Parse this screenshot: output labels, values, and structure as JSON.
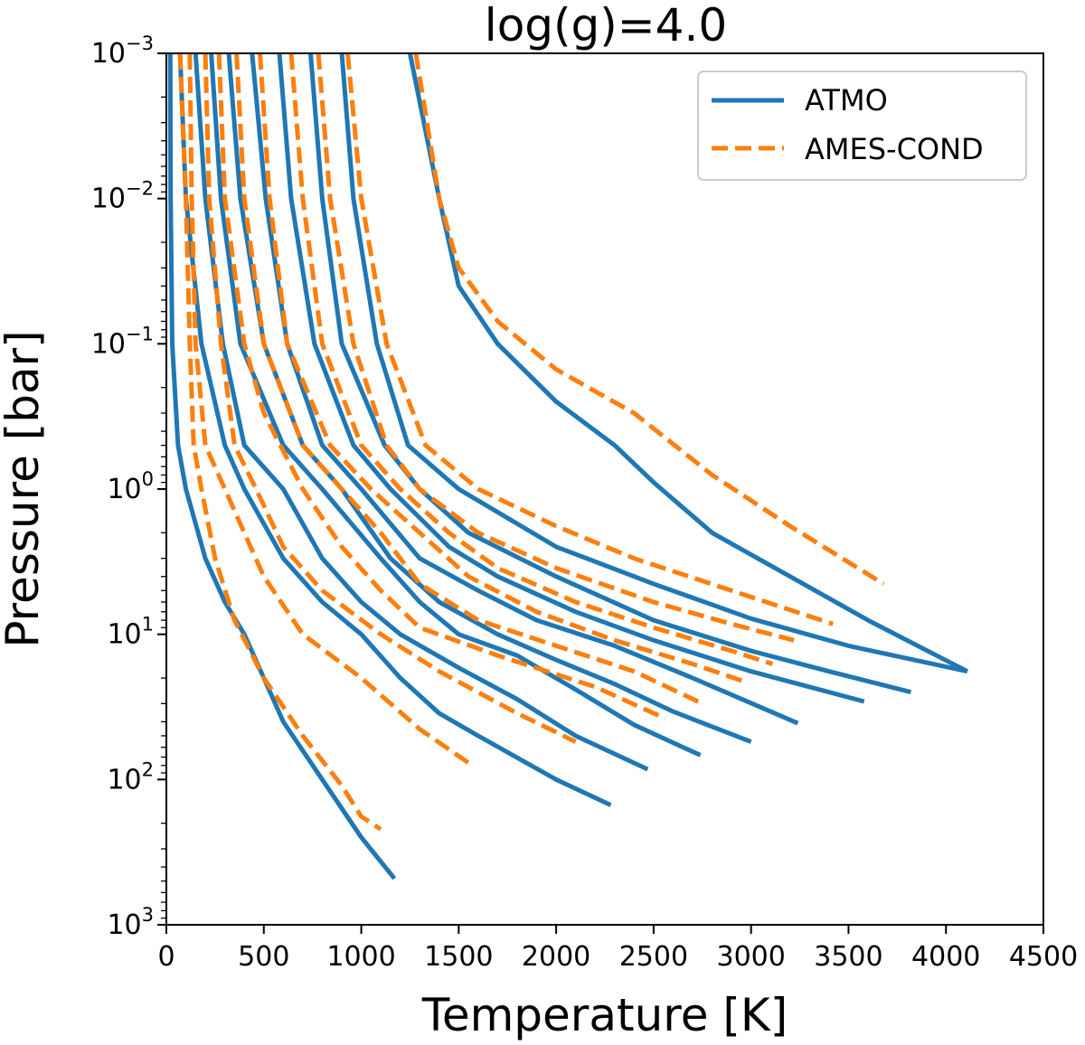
{
  "chart_data": {
    "type": "line",
    "title": "log(g)=4.0",
    "xlabel": "Temperature [K]",
    "ylabel": "Pressure [bar]",
    "xlim": [
      0,
      4500
    ],
    "ylim": [
      0.001,
      1000
    ],
    "y_scale": "log",
    "y_inverted": true,
    "x_ticks": [
      0,
      500,
      1000,
      1500,
      2000,
      2500,
      3000,
      3500,
      4000,
      4500
    ],
    "x_tick_labels": [
      "0",
      "500",
      "1000",
      "1500",
      "2000",
      "2500",
      "3000",
      "3500",
      "4000",
      "4500"
    ],
    "y_ticks": [
      0.001,
      0.01,
      0.1,
      1,
      10,
      100,
      1000
    ],
    "y_tick_labels": [
      {
        "base": "10",
        "exp": "−3"
      },
      {
        "base": "10",
        "exp": "−2"
      },
      {
        "base": "10",
        "exp": "−1"
      },
      {
        "base": "10",
        "exp": "0"
      },
      {
        "base": "10",
        "exp": "1"
      },
      {
        "base": "10",
        "exp": "2"
      },
      {
        "base": "10",
        "exp": "3"
      }
    ],
    "legend": {
      "position": "top-right",
      "entries": [
        {
          "label": "ATMO",
          "color": "#1f77b4",
          "style": "solid"
        },
        {
          "label": "AMES-COND",
          "color": "#ff7f0e",
          "style": "dashed"
        }
      ]
    },
    "series": [
      {
        "group": "ATMO",
        "color": "#1f77b4",
        "style": "solid",
        "points": [
          [
            20,
            0.001
          ],
          [
            22,
            0.01
          ],
          [
            30,
            0.1
          ],
          [
            60,
            0.5
          ],
          [
            100,
            1
          ],
          [
            200,
            3
          ],
          [
            300,
            6
          ],
          [
            400,
            10
          ],
          [
            500,
            20
          ],
          [
            600,
            40
          ],
          [
            800,
            100
          ],
          [
            1000,
            250
          ],
          [
            1170,
            480
          ]
        ]
      },
      {
        "group": "ATMO",
        "color": "#1f77b4",
        "style": "solid",
        "points": [
          [
            70,
            0.001
          ],
          [
            100,
            0.01
          ],
          [
            180,
            0.1
          ],
          [
            300,
            0.5
          ],
          [
            400,
            1
          ],
          [
            600,
            3
          ],
          [
            800,
            6
          ],
          [
            1000,
            10
          ],
          [
            1200,
            20
          ],
          [
            1400,
            35
          ],
          [
            1600,
            50
          ],
          [
            2000,
            100
          ],
          [
            2280,
            150
          ]
        ]
      },
      {
        "group": "ATMO",
        "color": "#1f77b4",
        "style": "solid",
        "points": [
          [
            150,
            0.001
          ],
          [
            200,
            0.01
          ],
          [
            290,
            0.1
          ],
          [
            400,
            0.5
          ],
          [
            600,
            1
          ],
          [
            800,
            3
          ],
          [
            1000,
            6
          ],
          [
            1200,
            10
          ],
          [
            1500,
            17
          ],
          [
            1800,
            28
          ],
          [
            2100,
            50
          ],
          [
            2470,
            85
          ]
        ]
      },
      {
        "group": "ATMO",
        "color": "#1f77b4",
        "style": "solid",
        "points": [
          [
            230,
            0.001
          ],
          [
            280,
            0.01
          ],
          [
            380,
            0.1
          ],
          [
            600,
            0.5
          ],
          [
            800,
            1
          ],
          [
            1100,
            3
          ],
          [
            1300,
            6
          ],
          [
            1500,
            10
          ],
          [
            1800,
            14
          ],
          [
            2100,
            24
          ],
          [
            2400,
            42
          ],
          [
            2740,
            68
          ]
        ]
      },
      {
        "group": "ATMO",
        "color": "#1f77b4",
        "style": "solid",
        "points": [
          [
            320,
            0.001
          ],
          [
            380,
            0.01
          ],
          [
            500,
            0.1
          ],
          [
            700,
            0.5
          ],
          [
            900,
            1
          ],
          [
            1150,
            3
          ],
          [
            1400,
            6
          ],
          [
            1700,
            10
          ],
          [
            2000,
            15
          ],
          [
            2300,
            22
          ],
          [
            2600,
            34
          ],
          [
            3000,
            55
          ]
        ]
      },
      {
        "group": "ATMO",
        "color": "#1f77b4",
        "style": "solid",
        "points": [
          [
            440,
            0.001
          ],
          [
            510,
            0.01
          ],
          [
            620,
            0.1
          ],
          [
            800,
            0.5
          ],
          [
            1000,
            1
          ],
          [
            1300,
            3
          ],
          [
            1600,
            5
          ],
          [
            1900,
            8
          ],
          [
            2300,
            12
          ],
          [
            2700,
            20
          ],
          [
            3240,
            41
          ]
        ]
      },
      {
        "group": "ATMO",
        "color": "#1f77b4",
        "style": "solid",
        "points": [
          [
            580,
            0.001
          ],
          [
            640,
            0.01
          ],
          [
            760,
            0.1
          ],
          [
            960,
            0.5
          ],
          [
            1150,
            1
          ],
          [
            1450,
            2.5
          ],
          [
            1700,
            4
          ],
          [
            2100,
            7
          ],
          [
            2500,
            11
          ],
          [
            3000,
            18
          ],
          [
            3580,
            29
          ]
        ]
      },
      {
        "group": "ATMO",
        "color": "#1f77b4",
        "style": "solid",
        "points": [
          [
            740,
            0.001
          ],
          [
            800,
            0.01
          ],
          [
            900,
            0.1
          ],
          [
            1120,
            0.5
          ],
          [
            1300,
            1
          ],
          [
            1550,
            2
          ],
          [
            2000,
            4
          ],
          [
            2500,
            8
          ],
          [
            3000,
            13
          ],
          [
            3400,
            18
          ],
          [
            3820,
            25
          ]
        ]
      },
      {
        "group": "ATMO",
        "color": "#1f77b4",
        "style": "solid",
        "points": [
          [
            900,
            0.001
          ],
          [
            960,
            0.01
          ],
          [
            1080,
            0.1
          ],
          [
            1240,
            0.5
          ],
          [
            1500,
            1
          ],
          [
            2000,
            2.5
          ],
          [
            2500,
            4.5
          ],
          [
            3000,
            7.8
          ],
          [
            3500,
            12
          ],
          [
            4110,
            18
          ]
        ]
      },
      {
        "group": "ATMO",
        "color": "#1f77b4",
        "style": "solid",
        "points": [
          [
            1250,
            0.001
          ],
          [
            1400,
            0.01
          ],
          [
            1500,
            0.04
          ],
          [
            1700,
            0.1
          ],
          [
            2000,
            0.25
          ],
          [
            2300,
            0.5
          ],
          [
            2500,
            0.9
          ],
          [
            2800,
            2
          ],
          [
            3200,
            4
          ],
          [
            3600,
            8
          ],
          [
            4110,
            18
          ]
        ]
      },
      {
        "group": "AMES-COND",
        "color": "#ff7f0e",
        "style": "dashed",
        "points": [
          [
            70,
            0.001
          ],
          [
            100,
            0.01
          ],
          [
            120,
            0.1
          ],
          [
            140,
            0.5
          ],
          [
            180,
            1
          ],
          [
            250,
            3
          ],
          [
            350,
            8
          ],
          [
            500,
            20
          ],
          [
            700,
            50
          ],
          [
            900,
            110
          ],
          [
            1000,
            180
          ],
          [
            1100,
            220
          ]
        ]
      },
      {
        "group": "AMES-COND",
        "color": "#ff7f0e",
        "style": "dashed",
        "points": [
          [
            120,
            0.001
          ],
          [
            130,
            0.01
          ],
          [
            150,
            0.1
          ],
          [
            200,
            0.5
          ],
          [
            300,
            1
          ],
          [
            400,
            2
          ],
          [
            500,
            4
          ],
          [
            700,
            10
          ],
          [
            1000,
            20
          ],
          [
            1300,
            45
          ],
          [
            1570,
            80
          ]
        ]
      },
      {
        "group": "AMES-COND",
        "color": "#ff7f0e",
        "style": "dashed",
        "points": [
          [
            200,
            0.001
          ],
          [
            220,
            0.01
          ],
          [
            280,
            0.1
          ],
          [
            350,
            0.5
          ],
          [
            460,
            1
          ],
          [
            600,
            2.5
          ],
          [
            800,
            5
          ],
          [
            1100,
            10
          ],
          [
            1400,
            18
          ],
          [
            1800,
            35
          ],
          [
            2100,
            55
          ]
        ]
      },
      {
        "group": "AMES-COND",
        "color": "#ff7f0e",
        "style": "dashed",
        "points": [
          [
            270,
            0.001
          ],
          [
            300,
            0.01
          ],
          [
            400,
            0.1
          ],
          [
            500,
            0.3
          ],
          [
            700,
            1
          ],
          [
            900,
            2.5
          ],
          [
            1100,
            5
          ],
          [
            1300,
            9
          ],
          [
            1700,
            14
          ],
          [
            2200,
            23
          ],
          [
            2560,
            38
          ]
        ]
      },
      {
        "group": "AMES-COND",
        "color": "#ff7f0e",
        "style": "dashed",
        "points": [
          [
            360,
            0.001
          ],
          [
            400,
            0.01
          ],
          [
            500,
            0.1
          ],
          [
            700,
            0.5
          ],
          [
            900,
            1
          ],
          [
            1100,
            2
          ],
          [
            1300,
            4.5
          ],
          [
            1600,
            8
          ],
          [
            2000,
            12
          ],
          [
            2400,
            18
          ],
          [
            2750,
            30
          ]
        ]
      },
      {
        "group": "AMES-COND",
        "color": "#ff7f0e",
        "style": "dashed",
        "points": [
          [
            480,
            0.001
          ],
          [
            530,
            0.01
          ],
          [
            620,
            0.1
          ],
          [
            840,
            0.5
          ],
          [
            1050,
            1
          ],
          [
            1300,
            2
          ],
          [
            1550,
            4
          ],
          [
            1900,
            7
          ],
          [
            2300,
            11
          ],
          [
            2700,
            16
          ],
          [
            2960,
            21
          ]
        ]
      },
      {
        "group": "AMES-COND",
        "color": "#ff7f0e",
        "style": "dashed",
        "points": [
          [
            640,
            0.001
          ],
          [
            700,
            0.01
          ],
          [
            800,
            0.1
          ],
          [
            1000,
            0.5
          ],
          [
            1200,
            1
          ],
          [
            1450,
            2
          ],
          [
            1700,
            3.5
          ],
          [
            2100,
            6
          ],
          [
            2500,
            9
          ],
          [
            2900,
            13
          ],
          [
            3110,
            16
          ]
        ]
      },
      {
        "group": "AMES-COND",
        "color": "#ff7f0e",
        "style": "dashed",
        "points": [
          [
            780,
            0.001
          ],
          [
            840,
            0.01
          ],
          [
            960,
            0.1
          ],
          [
            1130,
            0.5
          ],
          [
            1300,
            1
          ],
          [
            1600,
            2
          ],
          [
            2000,
            3.5
          ],
          [
            2500,
            6
          ],
          [
            2900,
            8.5
          ],
          [
            3220,
            11
          ]
        ]
      },
      {
        "group": "AMES-COND",
        "color": "#ff7f0e",
        "style": "dashed",
        "points": [
          [
            930,
            0.001
          ],
          [
            1000,
            0.01
          ],
          [
            1130,
            0.1
          ],
          [
            1330,
            0.5
          ],
          [
            1600,
            1
          ],
          [
            2000,
            1.8
          ],
          [
            2400,
            3
          ],
          [
            2900,
            5
          ],
          [
            3420,
            8.5
          ]
        ]
      },
      {
        "group": "AMES-COND",
        "color": "#ff7f0e",
        "style": "dashed",
        "points": [
          [
            1280,
            0.001
          ],
          [
            1400,
            0.01
          ],
          [
            1500,
            0.03
          ],
          [
            1700,
            0.07
          ],
          [
            2000,
            0.15
          ],
          [
            2400,
            0.3
          ],
          [
            2800,
            0.8
          ],
          [
            3200,
            1.8
          ],
          [
            3680,
            4.5
          ]
        ]
      }
    ]
  }
}
